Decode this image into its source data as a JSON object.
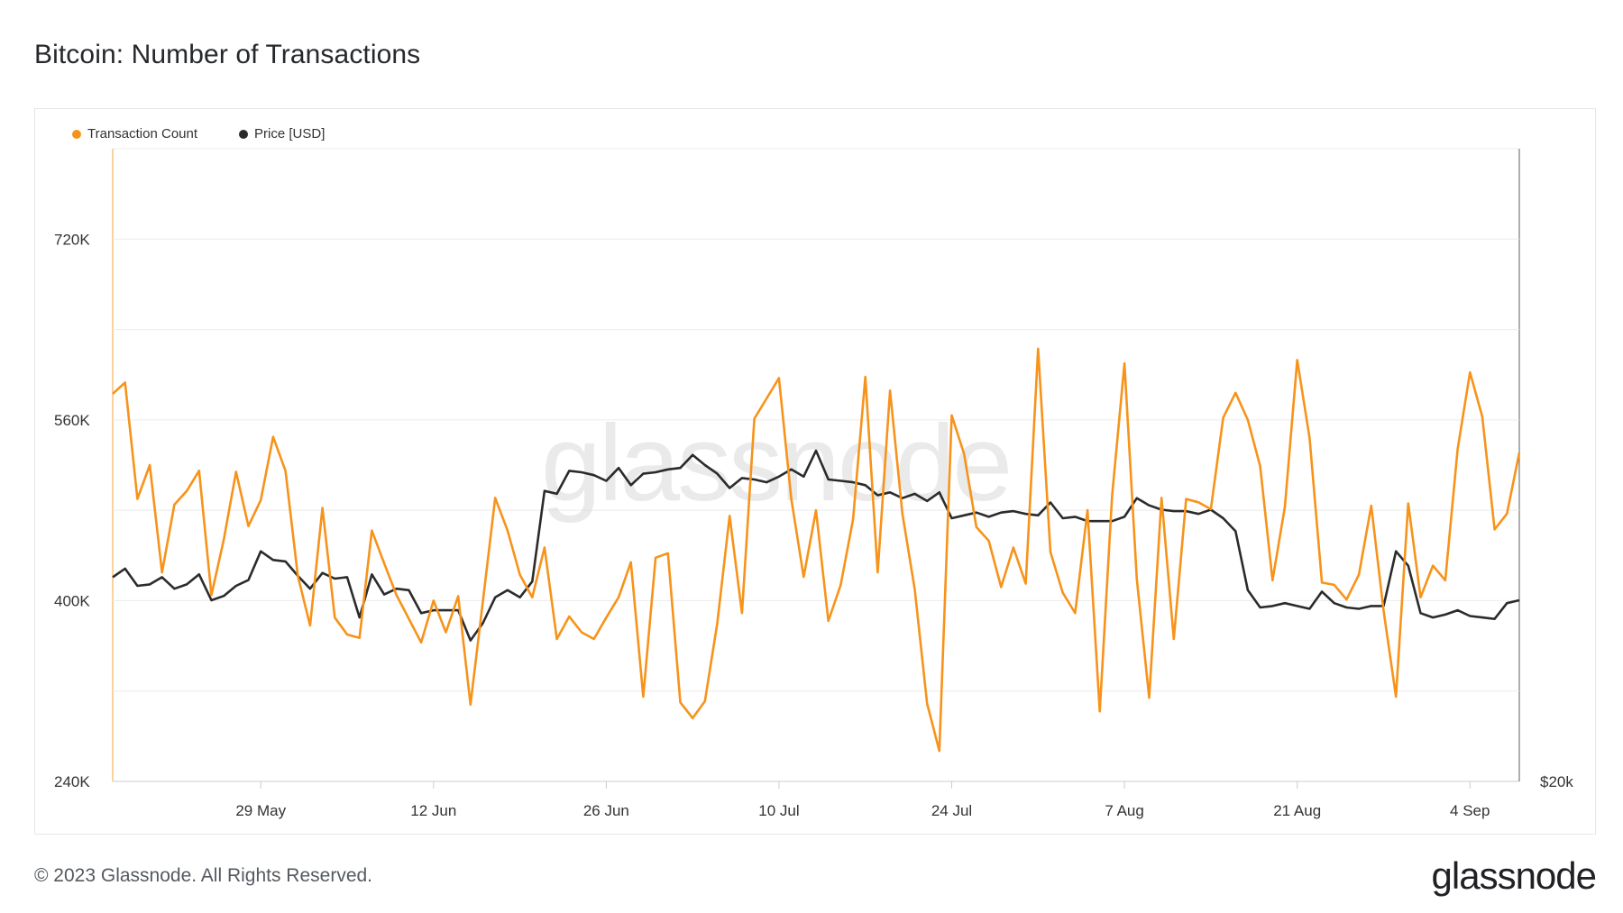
{
  "title": "Bitcoin: Number of Transactions",
  "footer": {
    "copyright": "© 2023 Glassnode. All Rights Reserved.",
    "logo": "glassnode"
  },
  "watermark": "glassnode",
  "colors": {
    "transaction_count": "#f7931a",
    "price": "#2b2b2b",
    "grid": "#ececec"
  },
  "chart_data": {
    "type": "line",
    "title": "Bitcoin: Number of Transactions",
    "legend_position": "top-left",
    "grid": true,
    "x_ticks": [
      "29 May",
      "12 Jun",
      "26 Jun",
      "10 Jul",
      "24 Jul",
      "7 Aug",
      "21 Aug",
      "4 Sep"
    ],
    "y_ticks": [
      "240K",
      "400K",
      "560K",
      "720K"
    ],
    "ylim": [
      240000,
      800000
    ],
    "y2_ticks": [
      "$20k"
    ],
    "x_start": "2023-05-17",
    "x_end": "2023-09-08",
    "series": [
      {
        "name": "Transaction Count",
        "axis": "left",
        "values": [
          583000,
          593000,
          490000,
          520000,
          425000,
          485000,
          497000,
          515000,
          405000,
          454000,
          514000,
          466000,
          489000,
          545000,
          515000,
          422000,
          378000,
          482000,
          385000,
          370000,
          367000,
          462000,
          433000,
          405000,
          384000,
          363000,
          400000,
          372000,
          404000,
          308000,
          399000,
          491000,
          462000,
          423000,
          403000,
          447000,
          366000,
          386000,
          372000,
          366000,
          385000,
          403000,
          434000,
          315000,
          438000,
          442000,
          310000,
          296000,
          311000,
          380000,
          475000,
          389000,
          561000,
          579000,
          597000,
          490000,
          421000,
          480000,
          382000,
          414000,
          472000,
          598000,
          425000,
          586000,
          477000,
          410000,
          309000,
          267000,
          564000,
          530000,
          465000,
          453000,
          412000,
          447000,
          415000,
          623000,
          443000,
          407000,
          389000,
          480000,
          302000,
          493000,
          610000,
          419000,
          314000,
          491000,
          366000,
          490000,
          487000,
          481000,
          562000,
          584000,
          560000,
          519000,
          418000,
          483000,
          613000,
          544000,
          416000,
          414000,
          401000,
          423000,
          484000,
          391000,
          315000,
          486000,
          403000,
          431000,
          418000,
          534000,
          602000,
          563000,
          463000,
          477000,
          531000
        ]
      },
      {
        "name": "Price [USD]",
        "axis": "right",
        "values": [
          27100,
          27400,
          26800,
          26850,
          27100,
          26700,
          26850,
          27200,
          26300,
          26450,
          26800,
          27000,
          28000,
          27700,
          27650,
          27150,
          26700,
          27250,
          27050,
          27100,
          25700,
          27200,
          26500,
          26700,
          26650,
          25850,
          25950,
          25950,
          25950,
          24900,
          25500,
          26400,
          26650,
          26400,
          26950,
          30100,
          30000,
          30800,
          30750,
          30650,
          30450,
          30900,
          30300,
          30700,
          30750,
          30850,
          30900,
          31350,
          31000,
          30700,
          30200,
          30550,
          30500,
          30400,
          30600,
          30850,
          30600,
          31500,
          30500,
          30450,
          30400,
          30300,
          29950,
          30050,
          29850,
          30000,
          29750,
          30050,
          29150,
          29250,
          29350,
          29200,
          29350,
          29400,
          29300,
          29250,
          29700,
          29150,
          29200,
          29050,
          29050,
          29050,
          29200,
          29850,
          29600,
          29450,
          29400,
          29400,
          29300,
          29450,
          29150,
          28700,
          26650,
          26050,
          26100,
          26200,
          26100,
          26000,
          26600,
          26200,
          26050,
          26000,
          26100,
          26100,
          28000,
          27500,
          25850,
          25700,
          25800,
          25950,
          25750,
          25700,
          25650,
          26200,
          26300
        ]
      }
    ]
  }
}
